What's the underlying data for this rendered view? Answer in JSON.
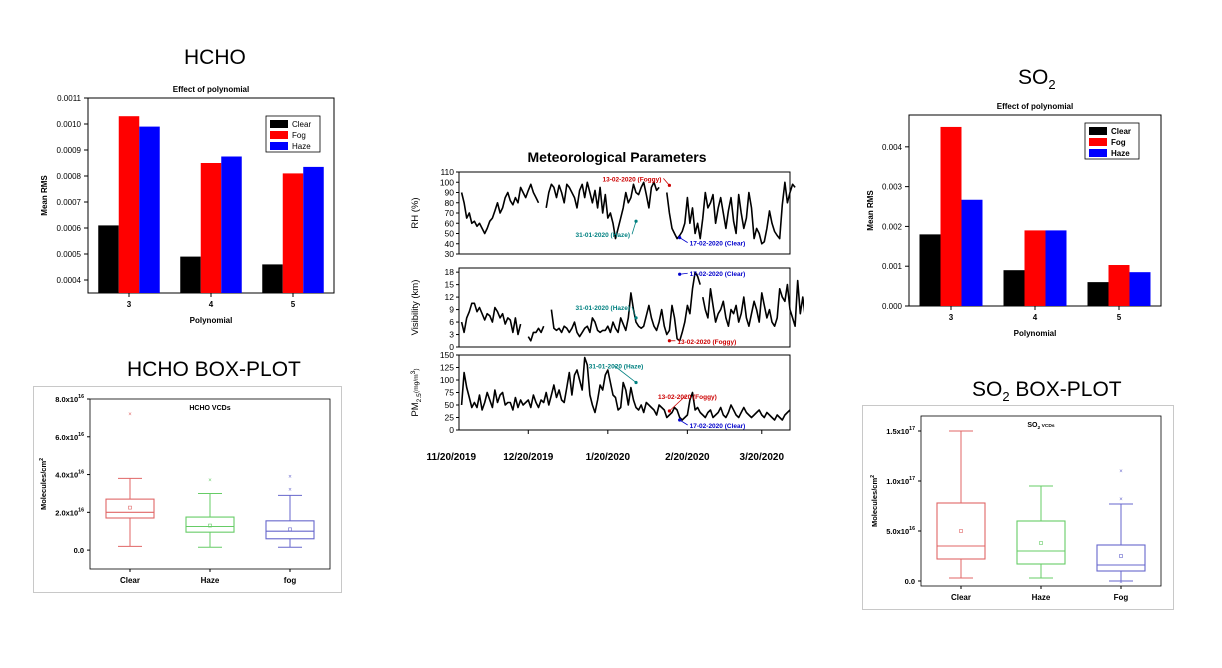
{
  "titles": {
    "hcho": "HCHO",
    "so2_main": "SO",
    "so2_sub": "2",
    "hcho_box": "HCHO BOX-PLOT",
    "so2_box_main": "SO",
    "so2_box_sub": "2",
    "so2_box_suffix": " BOX-PLOT"
  },
  "colors": {
    "clear": "#000000",
    "fog": "#ff0000",
    "haze": "#0000ff",
    "box_clear": "#e06666",
    "box_haze": "#66cc66",
    "box_fog": "#6666cc",
    "annot_haze": "#008080",
    "annot_fog": "#cc0000",
    "annot_clear": "#0000cc"
  },
  "chart_data": [
    {
      "id": "hcho_bar",
      "type": "bar",
      "title": "Effect of polynomial",
      "xlabel": "Polynomial",
      "ylabel": "Mean RMS",
      "categories": [
        "3",
        "4",
        "5"
      ],
      "ylim": [
        0.00035,
        0.0011
      ],
      "yticks": [
        "0.0004",
        "0.0005",
        "0.0006",
        "0.0007",
        "0.0008",
        "0.0009",
        "0.0010",
        "0.0011"
      ],
      "ytick_values": [
        0.0004,
        0.0005,
        0.0006,
        0.0007,
        0.0008,
        0.0009,
        0.001,
        0.0011
      ],
      "legend_position": "top-right",
      "series": [
        {
          "name": "Clear",
          "values": [
            0.00061,
            0.00049,
            0.00046
          ]
        },
        {
          "name": "Fog",
          "values": [
            0.00103,
            0.00085,
            0.00081
          ]
        },
        {
          "name": "Haze",
          "values": [
            0.00099,
            0.000875,
            0.000835
          ]
        }
      ]
    },
    {
      "id": "so2_bar",
      "type": "bar",
      "title": "Effect of polynomial",
      "xlabel": "Polynomial",
      "ylabel": "Mean RMS",
      "categories": [
        "3",
        "4",
        "5"
      ],
      "ylim": [
        0,
        0.0048
      ],
      "yticks": [
        "0.000",
        "0.001",
        "0.002",
        "0.003",
        "0.004"
      ],
      "ytick_values": [
        0,
        0.001,
        0.002,
        0.003,
        0.004
      ],
      "legend_position": "top-right",
      "series": [
        {
          "name": "Clear",
          "values": [
            0.0018,
            0.0009,
            0.0006
          ]
        },
        {
          "name": "Fog",
          "values": [
            0.0045,
            0.0019,
            0.00103
          ]
        },
        {
          "name": "Haze",
          "values": [
            0.00267,
            0.0019,
            0.00085
          ]
        }
      ]
    },
    {
      "id": "met_params",
      "type": "line",
      "title": "Meteorological Parameters",
      "x_tick_labels": [
        "11/20/2019",
        "12/20/2019",
        "1/20/2020",
        "2/20/2020",
        "3/20/2020"
      ],
      "x_tick_dates": [
        "2019-11-20",
        "2019-12-20",
        "2020-01-20",
        "2020-02-20",
        "2020-03-20"
      ],
      "xlim": [
        "2019-11-23",
        "2020-03-31"
      ],
      "panels": [
        {
          "ylabel": "RH (%)",
          "ylim": [
            30,
            110
          ],
          "yticks": [
            "30",
            "40",
            "50",
            "60",
            "70",
            "80",
            "90",
            "100",
            "110"
          ],
          "ytick_values": [
            30,
            40,
            50,
            60,
            70,
            80,
            90,
            100,
            110
          ],
          "segments": [
            {
              "start": "2019-11-24",
              "values": [
                90,
                80,
                65,
                70,
                60,
                62,
                57,
                60,
                55,
                50,
                55,
                62,
                65,
                72,
                80,
                70,
                75,
                85,
                90,
                82,
                78,
                85,
                80,
                95,
                90,
                85,
                92,
                98,
                90,
                85,
                80
              ]
            },
            {
              "start": "2019-12-27",
              "values": [
                75,
                90,
                98,
                95,
                85,
                97,
                90,
                80,
                98,
                95,
                90,
                85,
                75,
                92,
                98,
                85,
                100,
                90,
                80,
                92,
                75,
                95,
                70,
                88,
                65,
                70,
                60,
                45,
                55,
                65,
                75,
                90,
                80,
                85,
                98,
                90,
                88,
                95,
                100,
                88,
                75,
                95,
                100,
                92,
                95
              ]
            },
            {
              "start": "2020-02-12",
              "values": [
                90,
                70,
                55,
                50,
                45,
                48,
                52,
                60,
                85,
                60,
                75,
                50,
                60,
                45,
                65,
                90,
                75,
                80,
                88,
                60,
                75,
                85,
                70,
                55,
                72,
                85,
                62,
                50,
                88,
                70,
                55,
                65,
                90,
                75,
                45,
                55,
                50,
                40,
                42,
                55,
                72,
                60,
                52,
                48,
                45,
                78,
                100,
                80,
                90,
                98,
                95
              ]
            }
          ]
        },
        {
          "ylabel": "Visibility (km)",
          "ylim": [
            0,
            19
          ],
          "yticks": [
            "0",
            "3",
            "6",
            "9",
            "12",
            "15",
            "18"
          ],
          "ytick_values": [
            0,
            3,
            6,
            9,
            12,
            15,
            18
          ],
          "segments": [
            {
              "start": "2019-11-24",
              "values": [
                6,
                3.5,
                7,
                8.5,
                10.5,
                10.5,
                8.5,
                9.5,
                8,
                6.5,
                8,
                7.5,
                6,
                9.5,
                8.5,
                7,
                8,
                5.5,
                7,
                6.5,
                3.5,
                7,
                3,
                5.5
              ]
            },
            {
              "start": "2019-12-20",
              "values": [
                2.5,
                1.5,
                3.5,
                3.5,
                4.5,
                3.5,
                5
              ]
            },
            {
              "start": "2019-12-29",
              "values": [
                9,
                4.5,
                4,
                4.5,
                3.5,
                5,
                4.5,
                3.5,
                4.5,
                6,
                3.5,
                2.5,
                3.5,
                4.5,
                5,
                3.5,
                7,
                6,
                4,
                3.5,
                4,
                4,
                5,
                3.5,
                6,
                4.5,
                3.5,
                7,
                5.5,
                4,
                7,
                13,
                9,
                6,
                5,
                4.5,
                5,
                7.5,
                10,
                7,
                5,
                4,
                6,
                9,
                5,
                3,
                4,
                10,
                7,
                2,
                1.5,
                3.5,
                6,
                10,
                8,
                14,
                18,
                17,
                15
              ]
            },
            {
              "start": "2020-02-26",
              "values": [
                12,
                9,
                7,
                14,
                10,
                6,
                8,
                9,
                11,
                7,
                5,
                9,
                8,
                10,
                6,
                8,
                12,
                7,
                5,
                8,
                11,
                9,
                6,
                13,
                10,
                7,
                9,
                6,
                5,
                7,
                14,
                12,
                11,
                15,
                9,
                7,
                5,
                16,
                8,
                12,
                7,
                13,
                16,
                17,
                12,
                7,
                10,
                6,
                4.5
              ]
            }
          ]
        },
        {
          "ylabel_main": "PM",
          "ylabel_sub": "2.5",
          "ylabel_unit": "(mg/m",
          "ylabel_sup": "3",
          "ylabel_end": ")",
          "ylim": [
            0,
            150
          ],
          "yticks": [
            "0",
            "25",
            "50",
            "75",
            "100",
            "125",
            "150"
          ],
          "ytick_values": [
            0,
            25,
            50,
            75,
            100,
            125,
            150
          ],
          "segments": [
            {
              "start": "2019-11-24",
              "values": [
                50,
                115,
                85,
                65,
                45,
                55,
                45,
                70,
                40,
                55,
                75,
                60,
                45,
                80,
                55,
                70,
                75,
                50,
                55,
                55,
                40,
                65,
                45,
                60,
                50,
                55,
                60,
                45,
                70,
                55,
                45,
                60,
                55,
                75,
                50,
                70,
                90,
                65,
                80,
                60,
                55,
                85,
                115,
                70,
                110,
                120,
                100,
                80,
                145,
                130,
                70,
                50,
                35,
                60,
                90,
                80,
                110,
                120,
                95,
                70,
                65,
                40,
                45,
                95,
                80,
                50,
                85,
                60,
                45,
                40,
                50,
                35,
                55,
                50,
                45,
                40,
                30,
                50,
                45,
                40,
                25,
                30,
                35,
                45,
                40,
                25,
                20,
                25,
                30,
                60,
                75,
                40,
                45,
                35,
                30,
                25,
                35,
                40,
                25,
                30,
                35,
                45,
                30,
                25,
                35,
                50,
                40,
                30,
                25,
                35,
                45,
                35,
                30,
                25,
                30,
                35,
                40,
                30,
                25,
                35,
                30,
                25,
                20,
                30,
                25,
                20,
                30,
                35,
                40
              ]
            }
          ]
        }
      ],
      "annotations": [
        {
          "panel": 0,
          "text": "13-02-2020 (Foggy)",
          "tone": "fog",
          "x": "2020-02-13",
          "y": 97
        },
        {
          "panel": 0,
          "text": "31-01-2020 (Haze)",
          "tone": "haze",
          "x": "2020-01-31",
          "y": 62
        },
        {
          "panel": 0,
          "text": "17-02-2020 (Clear)",
          "tone": "clear",
          "x": "2020-02-17",
          "y": 46
        },
        {
          "panel": 1,
          "text": "17-02-2020 (Clear)",
          "tone": "clear",
          "x": "2020-02-17",
          "y": 17.5
        },
        {
          "panel": 1,
          "text": "31-01-2020 (Haze)",
          "tone": "haze",
          "x": "2020-01-31",
          "y": 7
        },
        {
          "panel": 1,
          "text": "13-02-2020 (Foggy)",
          "tone": "fog",
          "x": "2020-02-13",
          "y": 1.5
        },
        {
          "panel": 2,
          "text": "31-01-2020 (Haze)",
          "tone": "haze",
          "x": "2020-01-31",
          "y": 95
        },
        {
          "panel": 2,
          "text": "13-02-2020 (Foggy)",
          "tone": "fog",
          "x": "2020-02-13",
          "y": 38
        },
        {
          "panel": 2,
          "text": "17-02-2020 (Clear)",
          "tone": "clear",
          "x": "2020-02-17",
          "y": 20
        }
      ]
    },
    {
      "id": "hcho_boxplot",
      "type": "box",
      "title": "HCHO VCDs",
      "ylabel": "Molecules/cm",
      "ylabel_sup": "2",
      "ylim": [
        -1e+16,
        8e+16
      ],
      "yticks_main": [
        "0.0",
        "2.0x10",
        "4.0x10",
        "6.0x10",
        "8.0x10"
      ],
      "yticks_exp": [
        "",
        "16",
        "16",
        "16",
        "16"
      ],
      "ytick_values": [
        0,
        2e+16,
        4e+16,
        6e+16,
        8e+16
      ],
      "categories": [
        "Clear",
        "Haze",
        "fog"
      ],
      "boxes": [
        {
          "tone": "box_clear",
          "whisker_low": 2000000000000000.0,
          "q1": 1.7e+16,
          "median": 2e+16,
          "q3": 2.7e+16,
          "whisker_high": 3.8e+16,
          "mean": 2.25e+16,
          "outliers": [
            7.2e+16
          ]
        },
        {
          "tone": "box_haze",
          "whisker_low": 1500000000000000.0,
          "q1": 9500000000000000.0,
          "median": 1.25e+16,
          "q3": 1.75e+16,
          "whisker_high": 3e+16,
          "mean": 1.3e+16,
          "outliers": [
            3.7e+16
          ]
        },
        {
          "tone": "box_fog",
          "whisker_low": 1500000000000000.0,
          "q1": 6000000000000000.0,
          "median": 1e+16,
          "q3": 1.55e+16,
          "whisker_high": 2.9e+16,
          "mean": 1.1e+16,
          "outliers": [
            3.2e+16,
            3.9e+16
          ]
        }
      ]
    },
    {
      "id": "so2_boxplot",
      "type": "box",
      "title_main": "SO",
      "title_sub": "2",
      "title_suffix": " VCDs",
      "ylabel": "Molecules/cm",
      "ylabel_sup": "2",
      "ylim": [
        -5000000000000000.0,
        1.65e+17
      ],
      "yticks_main": [
        "0.0",
        "5.0x10",
        "1.0x10",
        "1.5x10"
      ],
      "yticks_exp": [
        "",
        "16",
        "17",
        "17"
      ],
      "ytick_values": [
        0,
        5e+16,
        1e+17,
        1.5e+17
      ],
      "categories": [
        "Clear",
        "Haze",
        "Fog"
      ],
      "boxes": [
        {
          "tone": "box_clear",
          "whisker_low": 3000000000000000.0,
          "q1": 2.2e+16,
          "median": 3.5e+16,
          "q3": 7.8e+16,
          "whisker_high": 1.5e+17,
          "mean": 5e+16,
          "outliers": []
        },
        {
          "tone": "box_haze",
          "whisker_low": 3000000000000000.0,
          "q1": 1.7e+16,
          "median": 3e+16,
          "q3": 6e+16,
          "whisker_high": 9.5e+16,
          "mean": 3.8e+16,
          "outliers": []
        },
        {
          "tone": "box_fog",
          "whisker_low": 0.0,
          "q1": 1e+16,
          "median": 1.6e+16,
          "q3": 3.6e+16,
          "whisker_high": 7.7e+16,
          "mean": 2.5e+16,
          "outliers": [
            8.2e+16,
            1.1e+17,
            -1000000000000000.0
          ]
        }
      ]
    }
  ]
}
